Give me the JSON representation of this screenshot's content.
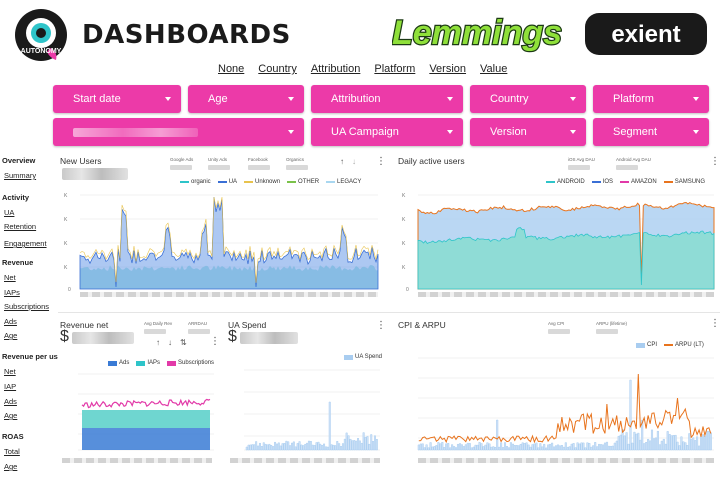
{
  "header": {
    "title": "DASHBOARDS",
    "logos": {
      "autonomy": "AUTONOMY",
      "lemmings": "Lemmings",
      "exient": "exient"
    },
    "breakdown": [
      "None",
      "Country",
      "Attribution",
      "Platform",
      "Version",
      "Value"
    ]
  },
  "filters": {
    "row1": [
      "Start date",
      "Age",
      "Attribution",
      "Country",
      "Platform"
    ],
    "row2": [
      "UA Campaign",
      "Version",
      "Segment"
    ]
  },
  "sidebar": {
    "overview": {
      "title": "Overview",
      "links": [
        "Summary"
      ]
    },
    "activity": {
      "title": "Activity",
      "links": [
        "UA",
        "Retention",
        "Engagement"
      ]
    },
    "revenue": {
      "title": "Revenue",
      "links": [
        "Net",
        "IAPs",
        "Subscriptions",
        "Ads",
        "Age"
      ]
    },
    "revenue_per_user": {
      "title": "Revenue per user",
      "links": [
        "Net",
        "IAP",
        "Ads",
        "Age"
      ]
    },
    "roas": {
      "title": "ROAS",
      "links": [
        "Total",
        "Age"
      ]
    }
  },
  "panels": {
    "new_users": {
      "title": "New Users",
      "stats": [
        "Google Ads",
        "Unity Ads",
        "Facebook",
        "Organics"
      ],
      "legend": [
        "organic",
        "UA",
        "Unknown",
        "OTHER",
        "LEGACY"
      ],
      "y_ticks": [
        "K",
        "K",
        "K",
        "K",
        "0"
      ]
    },
    "dau": {
      "title": "Daily active users",
      "stats": [
        "iOS Avg DAU",
        "Android Avg DAU"
      ],
      "legend": [
        "ANDROID",
        "IOS",
        "AMAZON",
        "SAMSUNG"
      ],
      "y_ticks": [
        "K",
        "K",
        "K",
        "K",
        "0"
      ]
    },
    "revenue_net": {
      "title": "Revenue net",
      "currency": "$",
      "stats": [
        "Avg Daily Rev",
        "ARRDAU"
      ],
      "legend": [
        "Ads",
        "IAPs",
        "Subscriptions"
      ]
    },
    "ua_spend": {
      "title": "UA Spend",
      "currency": "$",
      "legend": [
        "UA Spend"
      ]
    },
    "cpi_arpu": {
      "title": "CPI & ARPU",
      "stats": [
        "Avg CPI",
        "ARPU (lifetime)"
      ],
      "legend": [
        "CPI",
        "ARPU (LT)"
      ]
    }
  },
  "colors": {
    "pink": "#ec3aa8",
    "teal": "#7fdcd3",
    "blue": "#3a7bd5",
    "orange": "#e8741e",
    "lightblue": "#a9cdf0"
  }
}
